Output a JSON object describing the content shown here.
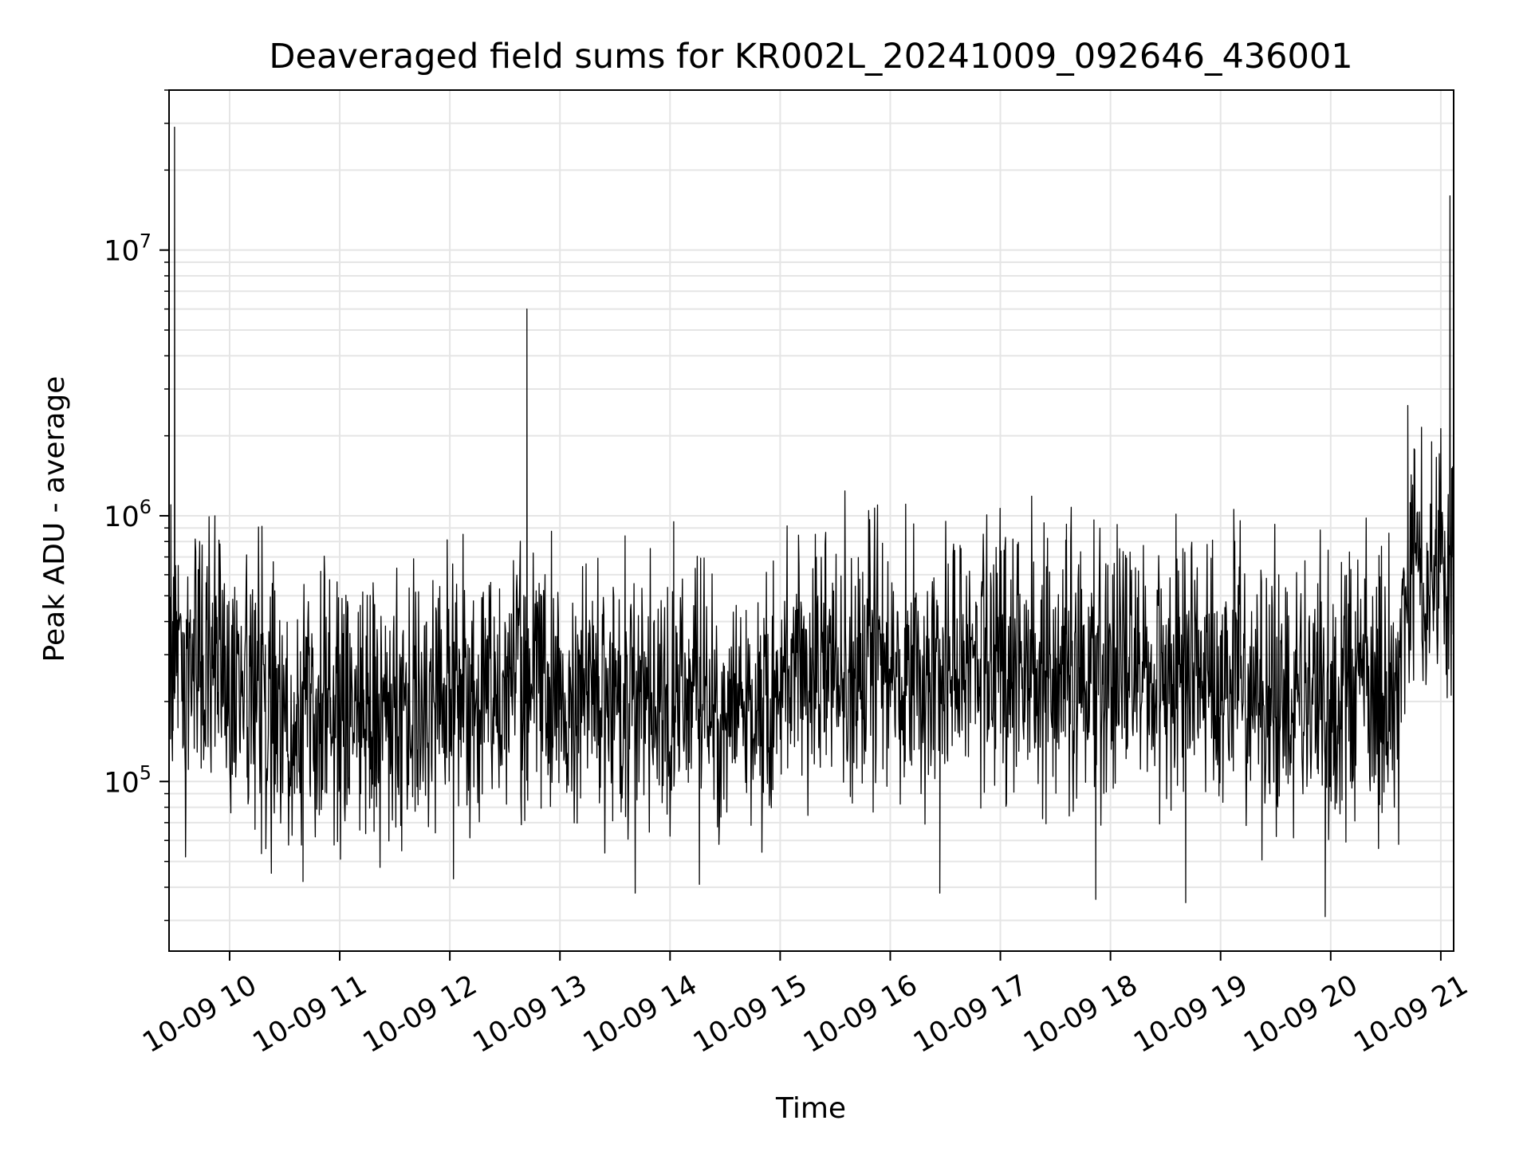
{
  "chart_data": {
    "type": "line",
    "title": "Deaveraged field sums for KR002L_20241009_092646_436001",
    "xlabel": "Time",
    "ylabel": "Peak ADU - average",
    "x_axis": {
      "kind": "datetime",
      "range": [
        "2024-10-09T09:27:00",
        "2024-10-09T21:07:00"
      ],
      "ticks": [
        {
          "value": "2024-10-09T10:00",
          "label": "10-09 10"
        },
        {
          "value": "2024-10-09T11:00",
          "label": "10-09 11"
        },
        {
          "value": "2024-10-09T12:00",
          "label": "10-09 12"
        },
        {
          "value": "2024-10-09T13:00",
          "label": "10-09 13"
        },
        {
          "value": "2024-10-09T14:00",
          "label": "10-09 14"
        },
        {
          "value": "2024-10-09T15:00",
          "label": "10-09 15"
        },
        {
          "value": "2024-10-09T16:00",
          "label": "10-09 16"
        },
        {
          "value": "2024-10-09T17:00",
          "label": "10-09 17"
        },
        {
          "value": "2024-10-09T18:00",
          "label": "10-09 18"
        },
        {
          "value": "2024-10-09T19:00",
          "label": "10-09 19"
        },
        {
          "value": "2024-10-09T20:00",
          "label": "10-09 20"
        },
        {
          "value": "2024-10-09T21:00",
          "label": "10-09 21"
        }
      ]
    },
    "y_axis": {
      "scale": "log",
      "range": [
        23000,
        40000000
      ],
      "ticks": [
        {
          "value": 100000,
          "base": "10",
          "exp": "5"
        },
        {
          "value": 1000000,
          "base": "10",
          "exp": "6"
        },
        {
          "value": 10000000,
          "base": "10",
          "exp": "7"
        }
      ]
    },
    "grid": true,
    "legend": "none",
    "line_color": "#000000",
    "grid_color": "#e5e5e5",
    "series": [
      {
        "values": [
          {
            "x": "2024-10-09T09:27",
            "y": 300000
          },
          {
            "x": "2024-10-09T09:28",
            "y": 1100000
          },
          {
            "x": "2024-10-09T09:29",
            "y": 400000
          },
          {
            "x": "2024-10-09T09:30",
            "y": 29000000
          },
          {
            "x": "2024-10-09T09:31",
            "y": 250000
          },
          {
            "x": "2024-10-09T09:32",
            "y": 650000
          },
          {
            "x": "2024-10-09T09:36",
            "y": 52000
          },
          {
            "x": "2024-10-09T09:52",
            "y": 1000000
          },
          {
            "x": "2024-10-09T10:40",
            "y": 42000
          },
          {
            "x": "2024-10-09T12:02",
            "y": 43000
          },
          {
            "x": "2024-10-09T12:42",
            "y": 6000000
          },
          {
            "x": "2024-10-09T13:41",
            "y": 38000
          },
          {
            "x": "2024-10-09T14:02",
            "y": 950000
          },
          {
            "x": "2024-10-09T14:16",
            "y": 41000
          },
          {
            "x": "2024-10-09T16:27",
            "y": 38000
          },
          {
            "x": "2024-10-09T17:36",
            "y": 930000
          },
          {
            "x": "2024-10-09T17:52",
            "y": 36000
          },
          {
            "x": "2024-10-09T18:41",
            "y": 35000
          },
          {
            "x": "2024-10-09T19:57",
            "y": 31000
          },
          {
            "x": "2024-10-09T20:37",
            "y": 58000
          },
          {
            "x": "2024-10-09T20:42",
            "y": 2600000
          },
          {
            "x": "2024-10-09T20:55",
            "y": 1900000
          },
          {
            "x": "2024-10-09T21:01",
            "y": 900000
          },
          {
            "x": "2024-10-09T21:05",
            "y": 16000000
          },
          {
            "x": "2024-10-09T21:06",
            "y": 700000
          }
        ]
      }
    ],
    "baseline_profile": [
      {
        "x": "2024-10-09T09:27",
        "y": 320000
      },
      {
        "x": "2024-10-09T10:00",
        "y": 260000
      },
      {
        "x": "2024-10-09T10:30",
        "y": 180000
      },
      {
        "x": "2024-10-09T11:30",
        "y": 175000
      },
      {
        "x": "2024-10-09T12:30",
        "y": 230000
      },
      {
        "x": "2024-10-09T13:30",
        "y": 210000
      },
      {
        "x": "2024-10-09T14:30",
        "y": 200000
      },
      {
        "x": "2024-10-09T15:30",
        "y": 260000
      },
      {
        "x": "2024-10-09T16:30",
        "y": 290000
      },
      {
        "x": "2024-10-09T17:30",
        "y": 270000
      },
      {
        "x": "2024-10-09T18:30",
        "y": 260000
      },
      {
        "x": "2024-10-09T19:30",
        "y": 230000
      },
      {
        "x": "2024-10-09T20:00",
        "y": 200000
      },
      {
        "x": "2024-10-09T20:35",
        "y": 220000
      },
      {
        "x": "2024-10-09T20:42",
        "y": 550000
      },
      {
        "x": "2024-10-09T21:07",
        "y": 600000
      }
    ],
    "noise_amplitude_decades": 0.25
  }
}
